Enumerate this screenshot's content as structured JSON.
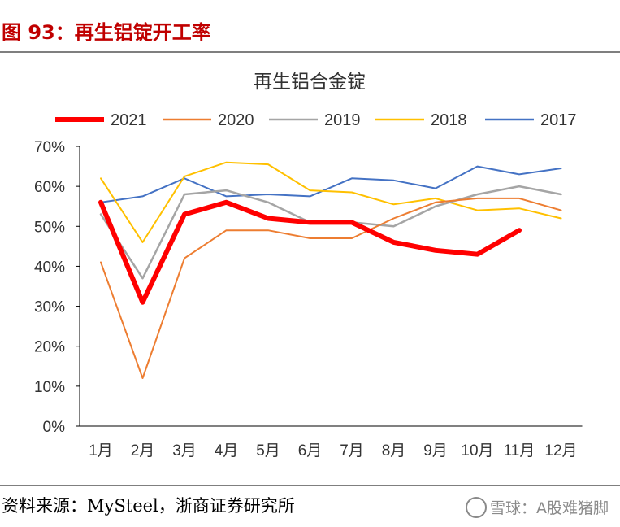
{
  "header": {
    "figure_title": "图 93：再生铝锭开工率"
  },
  "footer": {
    "source": "资料来源：MySteel，浙商证券研究所",
    "watermark": "雪球：A股难猪脚"
  },
  "chart_data": {
    "type": "line",
    "title": "再生铝合金锭",
    "categories": [
      "1月",
      "2月",
      "3月",
      "4月",
      "5月",
      "6月",
      "7月",
      "8月",
      "9月",
      "10月",
      "11月",
      "12月"
    ],
    "ylim": [
      0,
      70
    ],
    "yticks": [
      0,
      10,
      20,
      30,
      40,
      50,
      60,
      70
    ],
    "ytick_labels": [
      "0%",
      "10%",
      "20%",
      "30%",
      "40%",
      "50%",
      "60%",
      "70%"
    ],
    "grid": false,
    "legend_position": "top",
    "series": [
      {
        "name": "2021",
        "color": "#ff0000",
        "width": 6,
        "values": [
          56,
          31,
          53,
          56,
          52,
          51,
          51,
          46,
          44,
          43,
          49,
          null
        ]
      },
      {
        "name": "2020",
        "color": "#ed7d31",
        "width": 2,
        "values": [
          41,
          12,
          42,
          49,
          49,
          47,
          47,
          52,
          56,
          57,
          57,
          54
        ]
      },
      {
        "name": "2019",
        "color": "#a5a5a5",
        "width": 2.5,
        "values": [
          53,
          37,
          58,
          59,
          56,
          51,
          51,
          50,
          55,
          58,
          60,
          58
        ]
      },
      {
        "name": "2018",
        "color": "#ffc000",
        "width": 2,
        "values": [
          62,
          46,
          62.5,
          66,
          65.5,
          59,
          58.5,
          55.5,
          57,
          54,
          54.5,
          52
        ]
      },
      {
        "name": "2017",
        "color": "#4472c4",
        "width": 2,
        "values": [
          56,
          57.5,
          62,
          57.5,
          58,
          57.5,
          62,
          61.5,
          59.5,
          65,
          63,
          64.5
        ]
      }
    ]
  }
}
